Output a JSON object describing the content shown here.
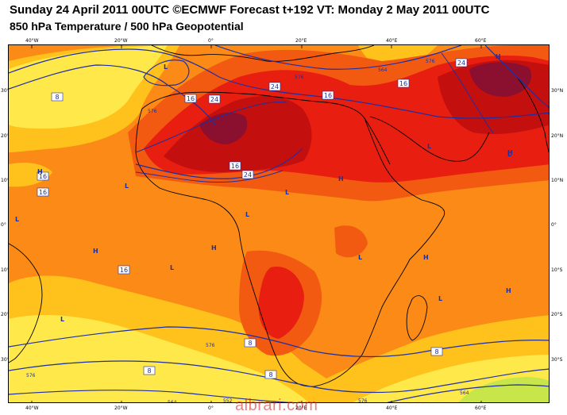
{
  "title": "Sunday 24 April 2011 00UTC ©ECMWF Forecast t+192 VT: Monday 2 May 2011 00UTC",
  "subtitle": "850 hPa Temperature / 500 hPa Geopotential",
  "longitude_labels": [
    "40°W",
    "20°W",
    "0°",
    "20°E",
    "40°E",
    "60°E"
  ],
  "latitude_labels": [
    "30°N",
    "20°N",
    "10°N",
    "0°",
    "10°S",
    "20°S",
    "30°S"
  ],
  "temperature_labels": [
    "8",
    "16",
    "24",
    "16",
    "24",
    "16",
    "24",
    "16",
    "24",
    "16",
    "16",
    "16",
    "8",
    "8",
    "8",
    "8"
  ],
  "geopotential_labels": [
    "576",
    "576",
    "564",
    "576",
    "576",
    "576",
    "564",
    "552",
    "576",
    "564"
  ],
  "pressure_centers": [
    "L",
    "H",
    "H",
    "L",
    "L",
    "H",
    "H",
    "L",
    "L",
    "L",
    "H",
    "L",
    "L",
    "H",
    "L",
    "L",
    "H",
    "L",
    "H"
  ],
  "watermark": "albrari.com",
  "colors": {
    "temp_0_8": "#ffe94a",
    "temp_8_16": "#ffc21c",
    "temp_16_20": "#fb8b16",
    "temp_20_24": "#f25a12",
    "temp_24_28": "#e81f10",
    "temp_28_32": "#c40f0f",
    "temp_32_plus": "#8b0f2f",
    "cool_green": "#c8e64a",
    "contour_line": "#1f2fa0",
    "coastline": "#000000"
  }
}
